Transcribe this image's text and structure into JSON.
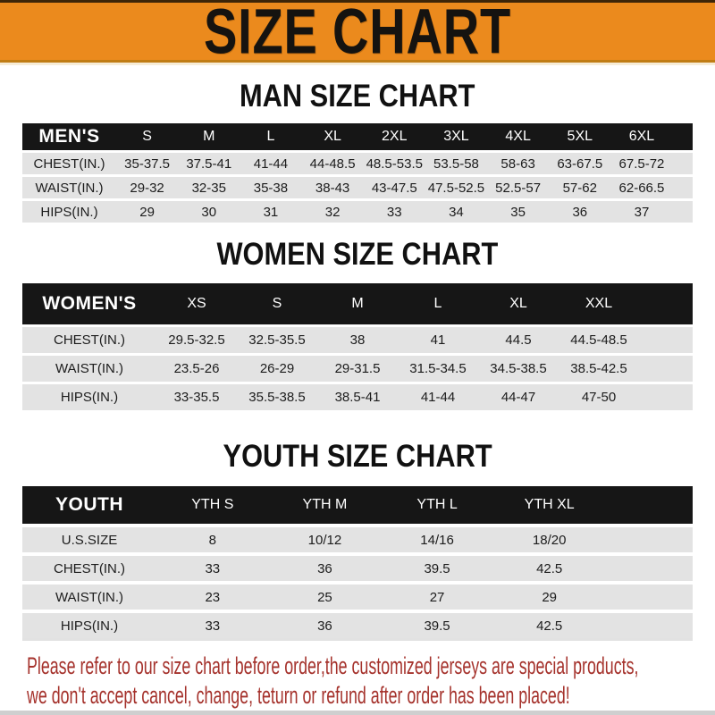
{
  "banner": {
    "title": "SIZE CHART"
  },
  "colors": {
    "banner_orange": "#EB8A1D",
    "header_black": "#161616",
    "row_gray": "#E3E3E3",
    "note_red": "#A5322C"
  },
  "sections": [
    {
      "title": "MAN SIZE CHART",
      "header_label": "MEN'S",
      "columns": [
        "S",
        "M",
        "L",
        "XL",
        "2XL",
        "3XL",
        "4XL",
        "5XL",
        "6XL"
      ],
      "rows": [
        {
          "label": "CHEST(IN.)",
          "values": [
            "35-37.5",
            "37.5-41",
            "41-44",
            "44-48.5",
            "48.5-53.5",
            "53.5-58",
            "58-63",
            "63-67.5",
            "67.5-72"
          ]
        },
        {
          "label": "WAIST(IN.)",
          "values": [
            "29-32",
            "32-35",
            "35-38",
            "38-43",
            "43-47.5",
            "47.5-52.5",
            "52.5-57",
            "57-62",
            "62-66.5"
          ]
        },
        {
          "label": "HIPS(IN.)",
          "values": [
            "29",
            "30",
            "31",
            "32",
            "33",
            "34",
            "35",
            "36",
            "37"
          ]
        }
      ]
    },
    {
      "title": "WOMEN SIZE CHART",
      "header_label": "WOMEN'S",
      "columns": [
        "XS",
        "S",
        "M",
        "L",
        "XL",
        "XXL"
      ],
      "rows": [
        {
          "label": "CHEST(IN.)",
          "values": [
            "29.5-32.5",
            "32.5-35.5",
            "38",
            "41",
            "44.5",
            "44.5-48.5"
          ]
        },
        {
          "label": "WAIST(IN.)",
          "values": [
            "23.5-26",
            "26-29",
            "29-31.5",
            "31.5-34.5",
            "34.5-38.5",
            "38.5-42.5"
          ]
        },
        {
          "label": "HIPS(IN.)",
          "values": [
            "33-35.5",
            "35.5-38.5",
            "38.5-41",
            "41-44",
            "44-47",
            "47-50"
          ]
        }
      ]
    },
    {
      "title": "YOUTH SIZE CHART",
      "header_label": "YOUTH",
      "columns": [
        "YTH S",
        "YTH M",
        "YTH L",
        "YTH XL"
      ],
      "rows": [
        {
          "label": "U.S.SIZE",
          "values": [
            "8",
            "10/12",
            "14/16",
            "18/20"
          ]
        },
        {
          "label": "CHEST(IN.)",
          "values": [
            "33",
            "36",
            "39.5",
            "42.5"
          ]
        },
        {
          "label": "WAIST(IN.)",
          "values": [
            "23",
            "25",
            "27",
            "29"
          ]
        },
        {
          "label": "HIPS(IN.)",
          "values": [
            "33",
            "36",
            "39.5",
            "42.5"
          ]
        }
      ]
    }
  ],
  "footer": {
    "line1": "Please refer to our size chart before order,the customized jerseys are special products,",
    "line2": "we don't accept cancel, change, teturn or refund after order has been placed!"
  }
}
